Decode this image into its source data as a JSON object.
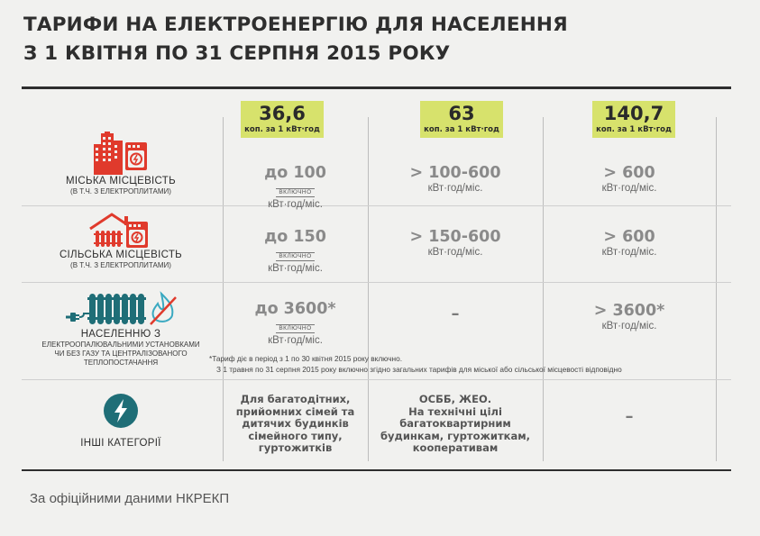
{
  "title": {
    "line1": "ТАРИФИ НА ЕЛЕКТРОЕНЕРГІЮ ДЛЯ НАСЕЛЕННЯ",
    "line2": "З 1 КВІТНЯ ПО 31 СЕРПНЯ 2015 РОКУ"
  },
  "prices": [
    {
      "value": "36,6",
      "unit": "коп. за 1 кВт·год"
    },
    {
      "value": "63",
      "unit": "коп. за 1 кВт·год"
    },
    {
      "value": "140,7",
      "unit": "коп. за 1 кВт·год"
    }
  ],
  "rows": {
    "city": {
      "label": "МІСЬКА МІСЦЕВІСТЬ",
      "sub": "(В Т.Ч. З ЕЛЕКТРОПЛИТАМИ)",
      "c1": "до 100",
      "c1_tag": "ВКЛЮЧНО",
      "c1_unit": "кВт·год/міс.",
      "c2": "> 100-600",
      "c2_unit": "кВт·год/міс.",
      "c3": "> 600",
      "c3_unit": "кВт·год/міс."
    },
    "rural": {
      "label": "СІЛЬСЬКА МІСЦЕВІСТЬ",
      "sub": "(В Т.Ч. З ЕЛЕКТРОПЛИТАМИ)",
      "c1": "до 150",
      "c1_tag": "ВКЛЮЧНО",
      "c1_unit": "кВт·год/міс.",
      "c2": "> 150-600",
      "c2_unit": "кВт·год/міс.",
      "c3": "> 600",
      "c3_unit": "кВт·год/міс."
    },
    "heating": {
      "label": "НАСЕЛЕННЮ З",
      "sub1": "ЕЛЕКТРООПАЛЮВАЛЬНИМИ УСТАНОВКАМИ",
      "sub2": "ЧИ БЕЗ ГАЗУ ТА ЦЕНТРАЛІЗОВАНОГО",
      "sub3": "ТЕПЛОПОСТАЧАННЯ",
      "c1": "до 3600*",
      "c1_tag": "ВКЛЮЧНО",
      "c1_unit": "кВт·год/міс.",
      "c2": "–",
      "c3": "> 3600*",
      "c3_unit": "кВт·год/міс.",
      "note1": "*Тариф діє в період з 1 по 30 квітня 2015 року включно.",
      "note2": "З 1 травня по 31 серпня 2015 року включно згідно загальних тарифів для міської або сільської місцевості відповідно"
    },
    "other": {
      "label": "ІНШІ КАТЕГОРІЇ",
      "c1": [
        "Для багатодітних,",
        "прийомних сімей та",
        "дитячих будинків",
        "сімейного типу,",
        "гуртожитків"
      ],
      "c2": [
        "ОСББ, ЖЕО.",
        "На технічні цілі",
        "багатоквартирним",
        "будинкам, гуртожиткам,",
        "кооперативам"
      ],
      "c3": "–"
    }
  },
  "source": "За офіційними даними НКРЕКП",
  "colors": {
    "background": "#f1f1ef",
    "accent_red": "#e03a2c",
    "price_green": "#d7e26c",
    "teal": "#1f6e77",
    "dark": "#2e2e2e"
  }
}
